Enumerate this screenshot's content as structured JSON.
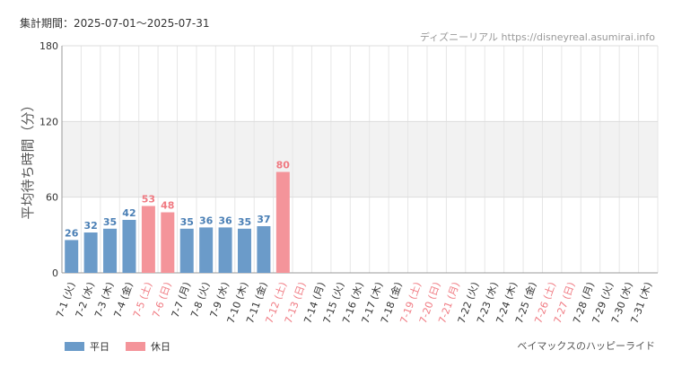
{
  "period_label": "集計期間：2025-07-01〜2025-07-31",
  "source_label": "ディズニーリアル https://disneyreal.asumirai.info",
  "attraction_name": "ベイマックスのハッピーライド",
  "legend": [
    {
      "label": "平日",
      "color": "#6b9bc9"
    },
    {
      "label": "休日",
      "color": "#f4949a"
    }
  ],
  "chart_data": {
    "type": "bar",
    "ylabel": "平均待ち時間（分）",
    "ylim": [
      0,
      180
    ],
    "yticks": [
      0,
      60,
      120,
      180
    ],
    "shaded_band": [
      60,
      120
    ],
    "categories": [
      "7-1 (火)",
      "7-2 (水)",
      "7-3 (木)",
      "7-4 (金)",
      "7-5 (土)",
      "7-6 (日)",
      "7-7 (月)",
      "7-8 (火)",
      "7-9 (水)",
      "7-10 (木)",
      "7-11 (金)",
      "7-12 (土)",
      "7-13 (日)",
      "7-14 (月)",
      "7-15 (火)",
      "7-16 (水)",
      "7-17 (木)",
      "7-18 (金)",
      "7-19 (土)",
      "7-20 (日)",
      "7-21 (月)",
      "7-22 (火)",
      "7-23 (水)",
      "7-24 (木)",
      "7-25 (金)",
      "7-26 (土)",
      "7-27 (日)",
      "7-28 (月)",
      "7-29 (火)",
      "7-30 (水)",
      "7-31 (木)"
    ],
    "values": [
      26,
      32,
      35,
      42,
      53,
      48,
      35,
      36,
      36,
      35,
      37,
      80,
      null,
      null,
      null,
      null,
      null,
      null,
      null,
      null,
      null,
      null,
      null,
      null,
      null,
      null,
      null,
      null,
      null,
      null,
      null
    ],
    "holiday": [
      false,
      false,
      false,
      false,
      true,
      true,
      false,
      false,
      false,
      false,
      false,
      true,
      true,
      false,
      false,
      false,
      false,
      false,
      true,
      true,
      true,
      false,
      false,
      false,
      false,
      true,
      true,
      false,
      false,
      false,
      false
    ],
    "colors": {
      "weekday": "#6b9bc9",
      "holiday": "#f4949a",
      "weekday_text": "#4a7fb5",
      "holiday_text": "#f07a82",
      "axis_weekday": "#333333",
      "axis_holiday": "#f07a82"
    }
  }
}
